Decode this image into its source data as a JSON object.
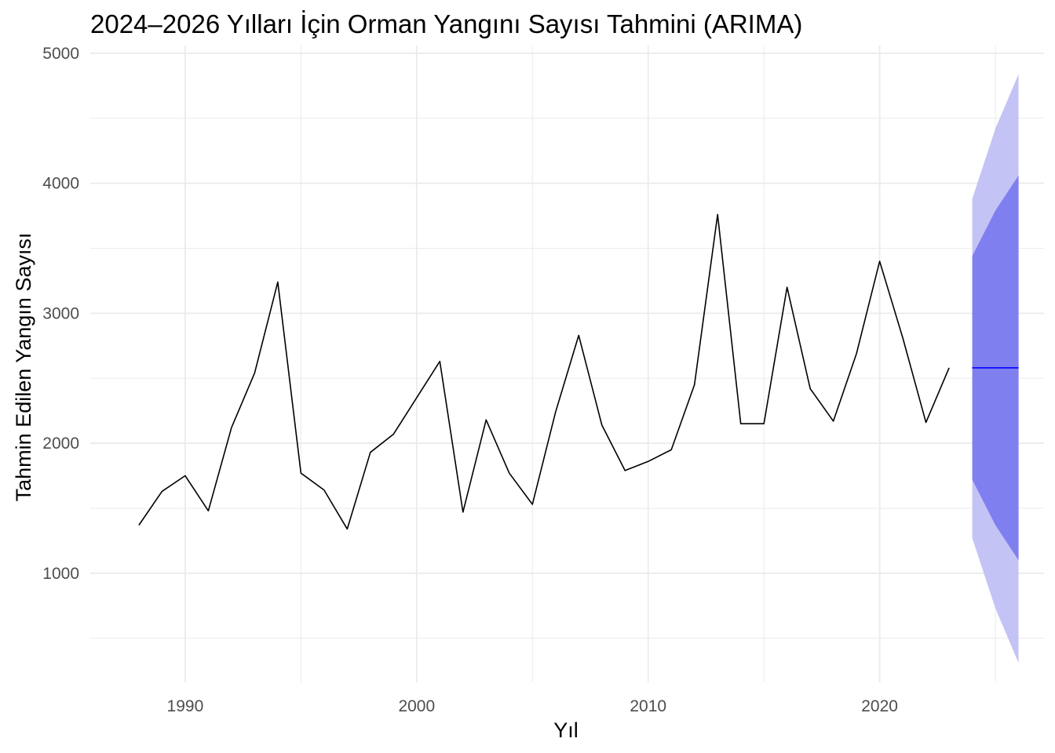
{
  "chart_data": {
    "type": "line",
    "title": "2024–2026 Yılları İçin Orman Yangını Sayısı Tahmini (ARIMA)",
    "xlabel": "Yıl",
    "ylabel": "Tahmin Edilen Yangın Sayısı",
    "xlim": [
      1985.9,
      2027.1
    ],
    "ylim": [
      160,
      5060
    ],
    "x_ticks": [
      1990,
      2000,
      2010,
      2020
    ],
    "y_ticks": [
      1000,
      2000,
      3000,
      4000,
      5000
    ],
    "grid": true,
    "legend": "none",
    "colors": {
      "history": "#000000",
      "forecast": "#0000FF",
      "band_80": "#7F7FEF",
      "band_95": "#C3C3F5",
      "grid": "#EBEBEB"
    },
    "series": [
      {
        "kind": "history",
        "x": [
          1988,
          1989,
          1990,
          1991,
          1992,
          1993,
          1994,
          1995,
          1996,
          1997,
          1998,
          1999,
          2000,
          2001,
          2002,
          2003,
          2004,
          2005,
          2006,
          2007,
          2008,
          2009,
          2010,
          2011,
          2012,
          2013,
          2014,
          2015,
          2016,
          2017,
          2018,
          2019,
          2020,
          2021,
          2022,
          2023
        ],
        "values": [
          1370,
          1630,
          1750,
          1480,
          2120,
          2540,
          3240,
          1770,
          1640,
          1340,
          1930,
          2070,
          2350,
          2630,
          1470,
          2180,
          1770,
          1530,
          2240,
          2830,
          2140,
          1790,
          1860,
          1950,
          2450,
          3760,
          2150,
          2150,
          3200,
          2420,
          2170,
          2690,
          3400,
          2810,
          2160,
          2580
        ]
      },
      {
        "kind": "forecast",
        "x": [
          2024,
          2025,
          2026
        ],
        "values": [
          2580,
          2580,
          2580
        ],
        "lower_80": [
          1720,
          1370,
          1100
        ],
        "upper_80": [
          3440,
          3790,
          4060
        ],
        "lower_95": [
          1270,
          730,
          310
        ],
        "upper_95": [
          3880,
          4420,
          4840
        ]
      }
    ]
  }
}
